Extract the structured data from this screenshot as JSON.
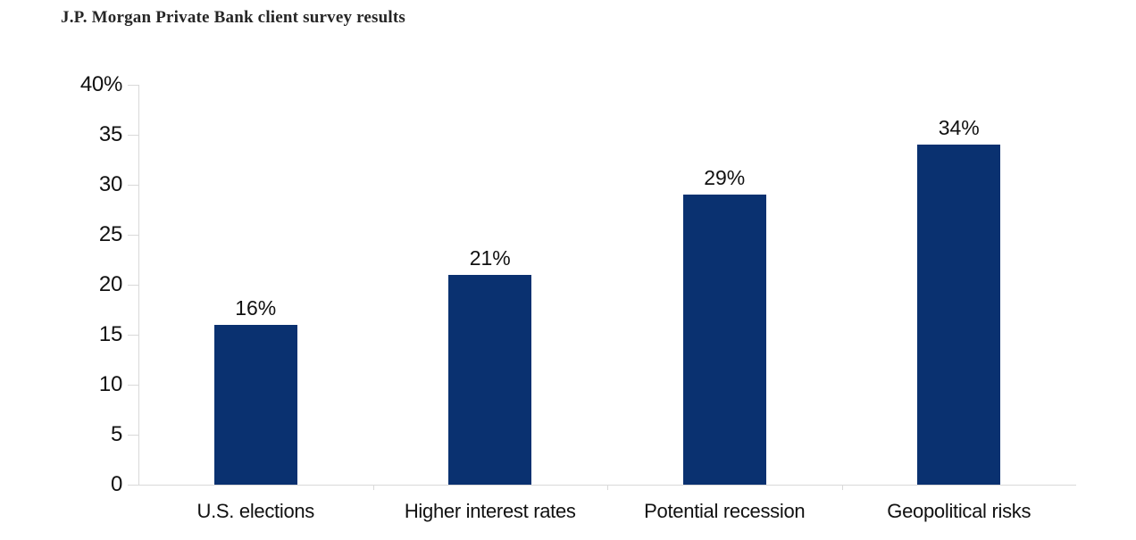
{
  "title": "J.P. Morgan Private Bank client survey results",
  "colors": {
    "bar": "#0a3170",
    "axis": "#d9d9d9",
    "label_text": "#111111",
    "title_text": "#262626",
    "background": "#ffffff"
  },
  "chart_data": {
    "type": "bar",
    "title": "J.P. Morgan Private Bank client survey results",
    "categories": [
      "U.S. elections",
      "Higher interest rates",
      "Potential recession",
      "Geopolitical risks"
    ],
    "values": [
      16,
      21,
      29,
      34
    ],
    "data_labels": [
      "16%",
      "21%",
      "29%",
      "34%"
    ],
    "xlabel": "",
    "ylabel": "",
    "ylim": [
      0,
      40
    ],
    "yticks": [
      {
        "value": 40,
        "label": "40%"
      },
      {
        "value": 35,
        "label": "35"
      },
      {
        "value": 30,
        "label": "30"
      },
      {
        "value": 25,
        "label": "25"
      },
      {
        "value": 20,
        "label": "20"
      },
      {
        "value": 15,
        "label": "15"
      },
      {
        "value": 10,
        "label": "10"
      },
      {
        "value": 5,
        "label": "5"
      },
      {
        "value": 0,
        "label": "0"
      }
    ],
    "grid": false,
    "legend": "none",
    "bar_color": "#0a3170"
  }
}
